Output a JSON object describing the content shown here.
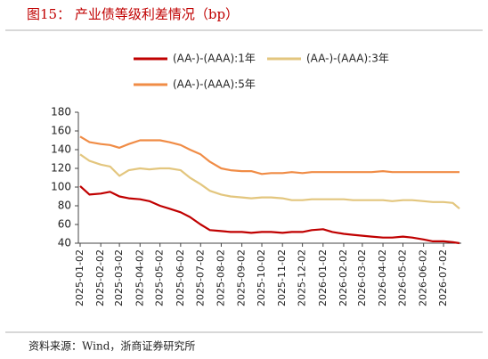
{
  "chart_data": {
    "type": "line",
    "title": "图15：  产业债等级利差情况（bp）",
    "source": "资料来源：Wind，浙商证券研究所",
    "x": [
      "2025-01-02",
      "2025-01-16",
      "2025-02-02",
      "2025-02-16",
      "2025-03-02",
      "2025-03-16",
      "2025-04-02",
      "2025-04-16",
      "2025-05-02",
      "2025-05-16",
      "2025-06-02",
      "2025-06-16",
      "2025-07-02",
      "2025-07-16",
      "2025-08-02",
      "2025-08-16",
      "2025-09-02",
      "2025-09-16",
      "2025-10-02",
      "2025-10-16",
      "2025-11-02",
      "2025-11-16",
      "2025-12-02",
      "2025-12-16",
      "2026-01-02",
      "2026-01-16",
      "2026-02-02",
      "2026-02-16",
      "2026-03-02",
      "2026-03-16",
      "2026-04-02",
      "2026-04-16",
      "2026-05-02",
      "2026-05-16",
      "2026-06-02",
      "2026-06-16",
      "2026-07-02",
      "2026-07-16",
      "2026-07-26"
    ],
    "series": [
      {
        "name": "(AA-)-(AAA):1年",
        "color": "#c00000",
        "values": [
          101,
          92,
          93,
          95,
          90,
          88,
          87,
          85,
          80,
          77,
          73,
          68,
          60,
          54,
          53,
          52,
          52,
          51,
          52,
          52,
          51,
          52,
          52,
          54,
          55,
          52,
          50,
          49,
          48,
          47,
          46,
          46,
          47,
          46,
          44,
          42,
          42,
          41,
          40
        ]
      },
      {
        "name": "(AA-)-(AAA):3年",
        "color": "#e3c67e",
        "values": [
          135,
          128,
          124,
          122,
          112,
          118,
          120,
          119,
          120,
          120,
          118,
          110,
          103,
          96,
          92,
          90,
          89,
          88,
          89,
          89,
          88,
          86,
          86,
          87,
          87,
          87,
          87,
          86,
          86,
          86,
          86,
          85,
          86,
          86,
          85,
          84,
          84,
          83,
          77
        ]
      },
      {
        "name": "(AA-)-(AAA):5年",
        "color": "#f08c46",
        "values": [
          154,
          148,
          146,
          145,
          142,
          146,
          150,
          150,
          150,
          148,
          145,
          140,
          135,
          127,
          120,
          118,
          117,
          117,
          114,
          115,
          115,
          116,
          115,
          116,
          116,
          116,
          116,
          116,
          116,
          116,
          117,
          116,
          116,
          116,
          116,
          116,
          116,
          116,
          116
        ]
      }
    ],
    "xlim": [
      "2025-01-02",
      "2026-07-26"
    ],
    "xticks": [
      "2025-01-02",
      "2025-02-02",
      "2025-03-02",
      "2025-04-02",
      "2025-05-02",
      "2025-06-02",
      "2025-07-02",
      "2025-08-02",
      "2025-09-02",
      "2025-10-02",
      "2025-11-02",
      "2025-12-02",
      "2026-01-02",
      "2026-02-02",
      "2026-03-02",
      "2026-04-02",
      "2026-05-02",
      "2026-06-02",
      "2026-07-02"
    ],
    "ylim": [
      40,
      180
    ],
    "yticks": [
      40,
      60,
      80,
      100,
      120,
      140,
      160,
      180
    ]
  }
}
